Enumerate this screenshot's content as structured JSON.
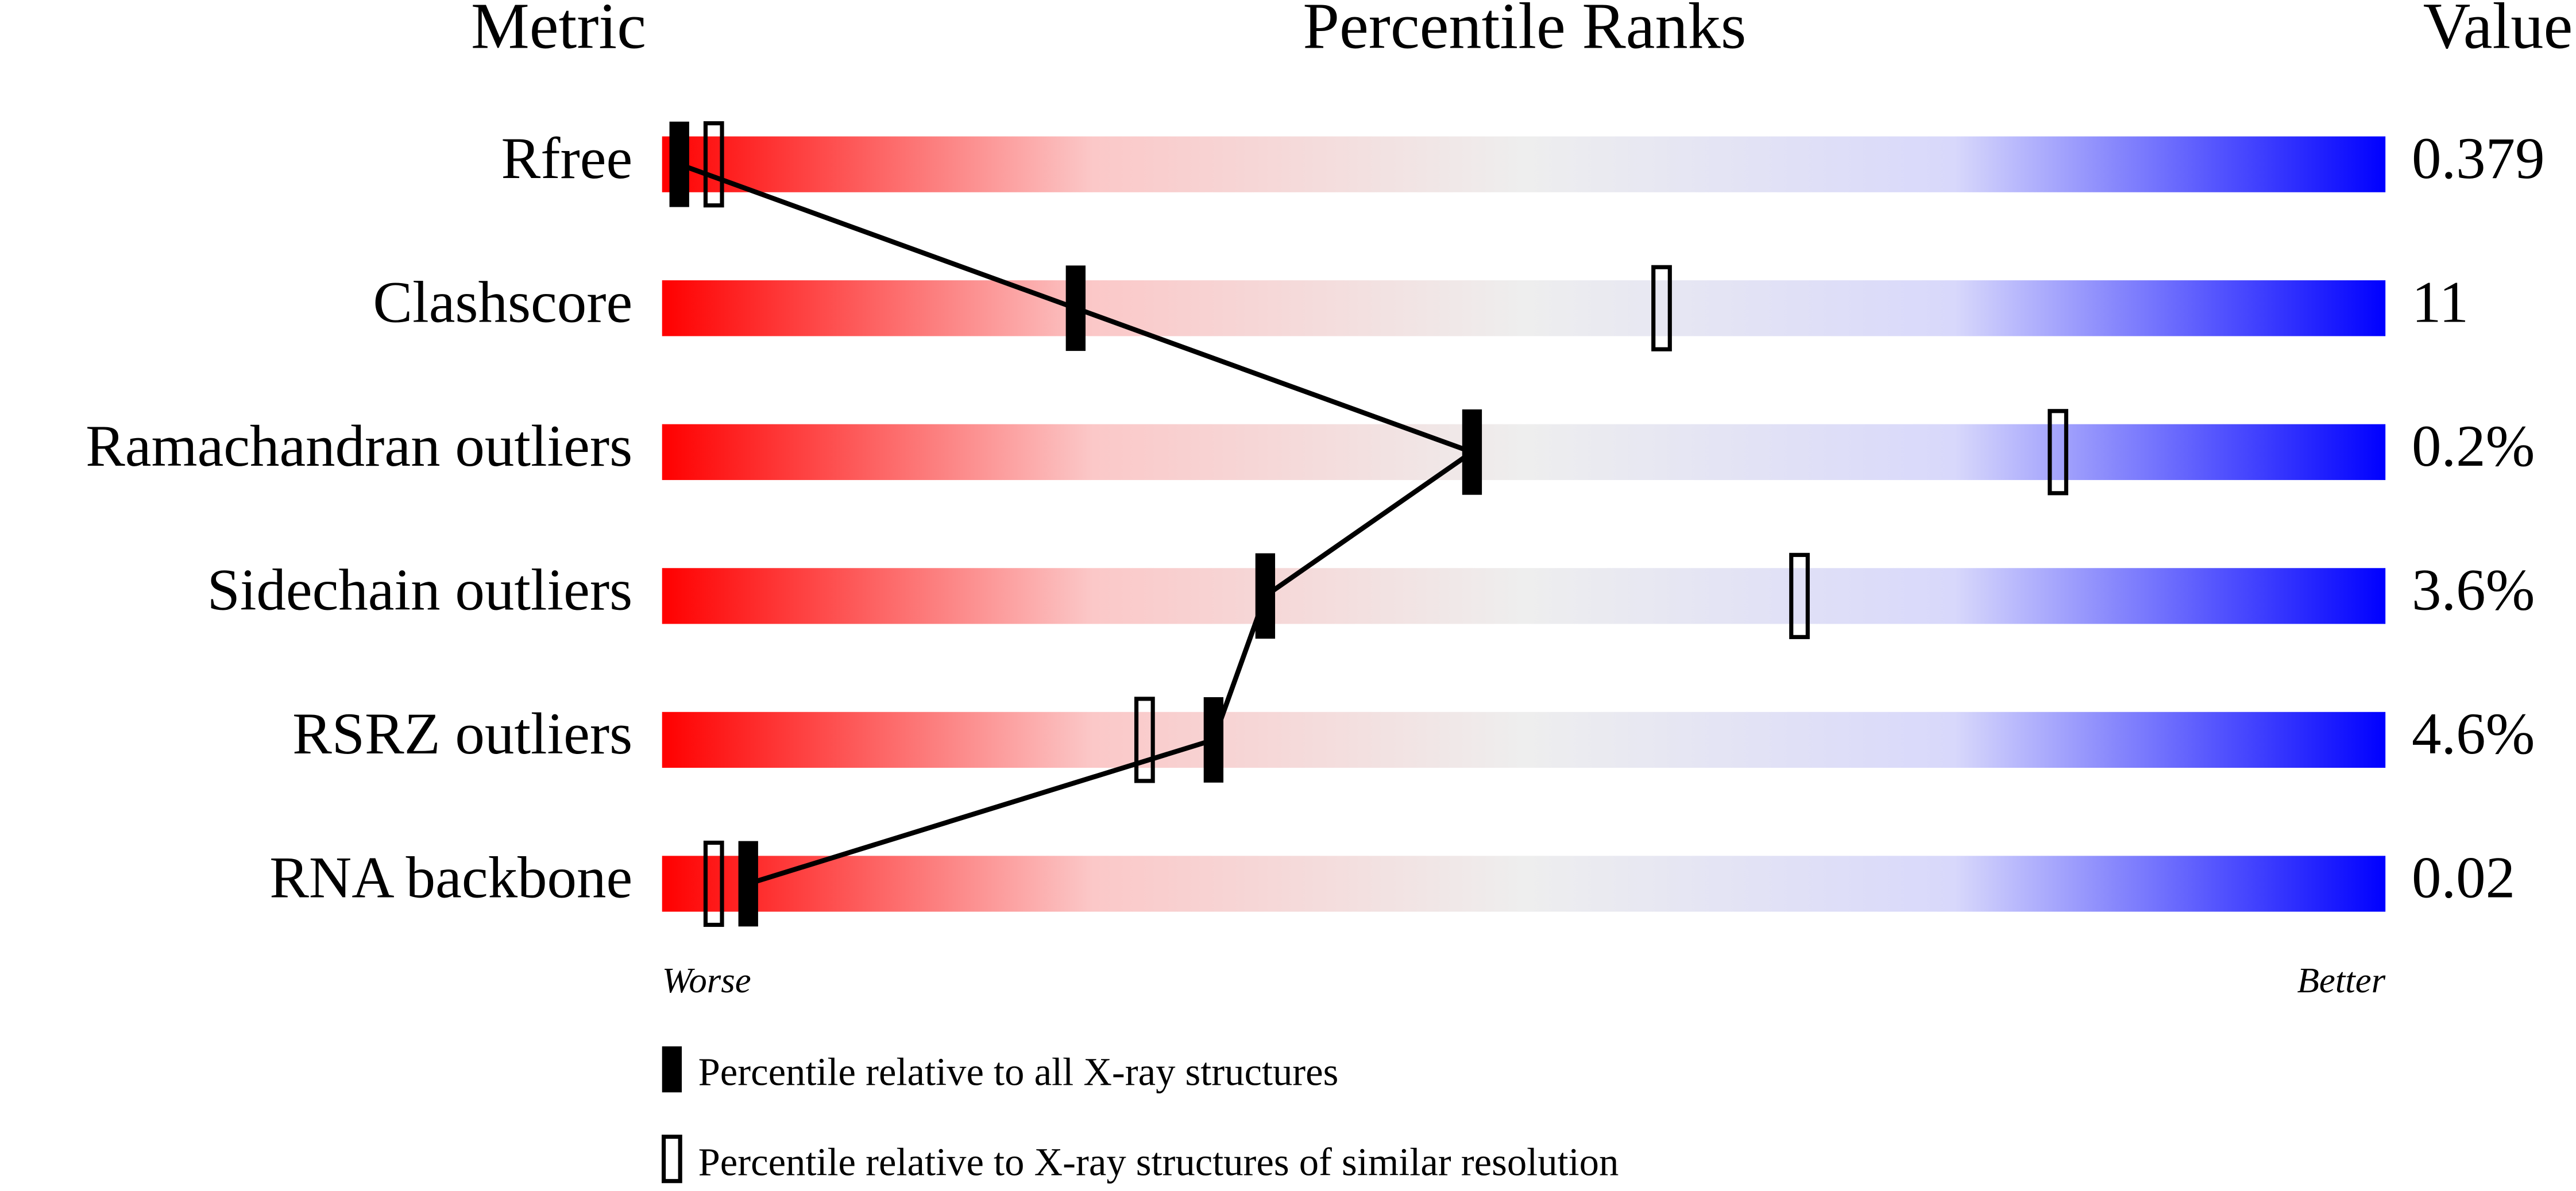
{
  "chart_data": {
    "type": "percentile-slider",
    "headers": [
      "Metric",
      "Percentile Ranks",
      "Value"
    ],
    "categories": [
      "Rfree",
      "Clashscore",
      "Ramachandran outliers",
      "Sidechain outliers",
      "RSRZ outliers",
      "RNA backbone"
    ],
    "metric_values": [
      "0.379",
      "11",
      "0.2%",
      "3.6%",
      "4.6%",
      "0.02"
    ],
    "series": [
      {
        "name": "Percentile relative to all X-ray structures",
        "color": "#000000",
        "values": [
          1,
          24,
          47,
          35,
          32,
          5
        ]
      },
      {
        "name": "Percentile relative to X-ray structures of similar resolution",
        "color": "#000000",
        "values": [
          3,
          58,
          81,
          66,
          28,
          3
        ]
      }
    ],
    "xlim": [
      0,
      100
    ],
    "axis_ends": [
      "Worse",
      "Better"
    ],
    "gradient": [
      "#ff0000",
      "#fbc8c8",
      "#eeeeee",
      "#d8d8fb",
      "#0000ff"
    ]
  }
}
